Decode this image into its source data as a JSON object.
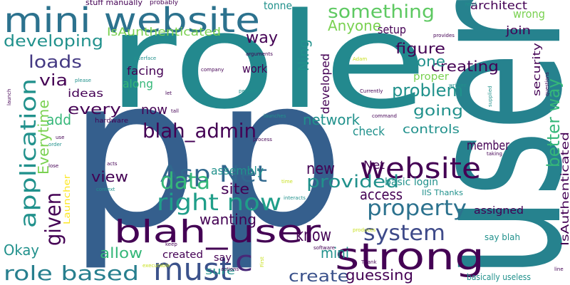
{
  "words": [
    "p",
    "p",
    "role",
    "user",
    "mini website",
    "strong",
    "blah_user",
    "must",
    "c",
    "website",
    "Asp Net",
    "right now",
    "blah_admin",
    "property",
    "system",
    "role based",
    "application",
    "given",
    "data",
    "something",
    "developing",
    "loads",
    "via",
    "ideas",
    "every",
    "add",
    "Everytime",
    "view",
    "Okay",
    "allow",
    "sure",
    "say",
    "created",
    "assembly",
    "site",
    "wanting",
    "know",
    "mini",
    "create",
    "guessing",
    "new",
    "access",
    "IIS Thanks",
    "Net",
    "basic login",
    "provided",
    "network",
    "check",
    "controls",
    "going",
    "problem",
    "creating",
    "one",
    "proper",
    "figure",
    "setup",
    "Anyone",
    "Ning",
    "developed",
    "way",
    "work",
    "tonne",
    "stuff manually",
    "probably",
    "IsAunthenticated",
    "facing",
    "along",
    "now",
    "hardware",
    "architect",
    "wrong",
    "join",
    "security",
    "better way",
    "IsAuthenticated",
    "member",
    "assigned",
    "say blah",
    "basically useless",
    "Launcher",
    "interface",
    "arguments",
    "company",
    "perform",
    "Currently",
    "Adam",
    "command",
    "launches",
    "process",
    "interacts",
    "context",
    "acts",
    "lose",
    "order",
    "use",
    "launch",
    "please",
    "let",
    "tall",
    "time",
    "software",
    "produces",
    "Thank",
    "actions",
    "keep",
    "executable",
    "First",
    "read",
    "provides",
    "written",
    "questions",
    "supplied",
    "taking",
    "line"
  ]
}
